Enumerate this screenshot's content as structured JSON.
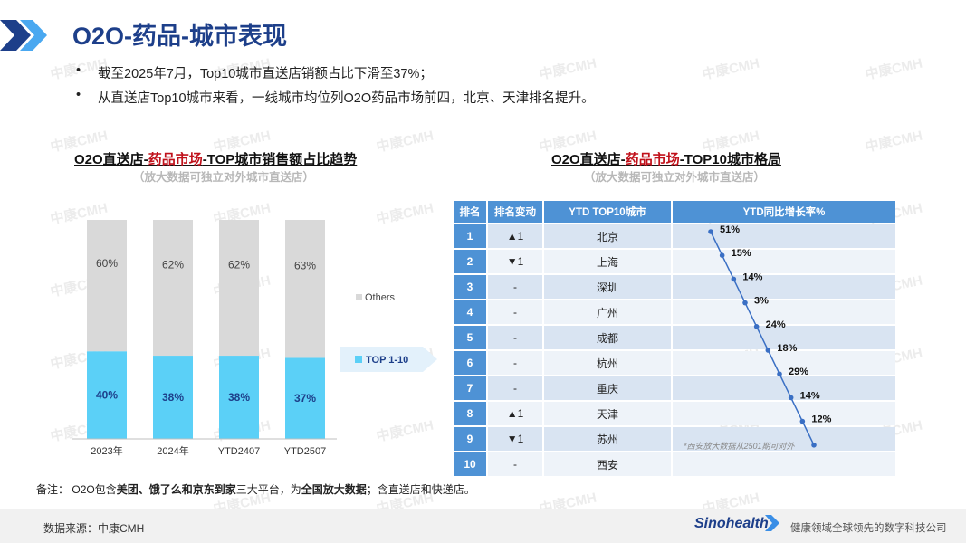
{
  "header": {
    "title": "O2O-药品-城市表现",
    "bullets": [
      "截至2025年7月，Top10城市直送店销额占比下滑至37%；",
      "从直送店Top10城市来看，一线城市均位列O2O药品市场前四，北京、天津排名提升。"
    ],
    "bullet_symbol": "•"
  },
  "left_chart": {
    "title_prefix": "O2O直送店-",
    "title_red": "药品市场",
    "title_suffix": "-TOP城市销售额占比趋势",
    "subtitle": "（放大数据可独立对外城市直送店）",
    "legend_others": "Others",
    "legend_top": "TOP 1-10",
    "colors": {
      "top": "#5bd0f7",
      "others": "#d9d9d9"
    }
  },
  "right_chart": {
    "title_prefix": "O2O直送店-",
    "title_red": "药品市场",
    "title_suffix": "-TOP10城市格局",
    "subtitle": "（放大数据可独立对外城市直送店）",
    "headers": [
      "排名",
      "排名变动",
      "YTD TOP10城市",
      "YTD同比增长率%"
    ],
    "rows": [
      {
        "rank": "1",
        "change": "▲1",
        "dir": "up",
        "city": "北京",
        "growth": "51%"
      },
      {
        "rank": "2",
        "change": "▼1",
        "dir": "down",
        "city": "上海",
        "growth": "15%"
      },
      {
        "rank": "3",
        "change": "-",
        "dir": "none",
        "city": "深圳",
        "growth": "14%"
      },
      {
        "rank": "4",
        "change": "-",
        "dir": "none",
        "city": "广州",
        "growth": "3%"
      },
      {
        "rank": "5",
        "change": "-",
        "dir": "none",
        "city": "成都",
        "growth": "24%"
      },
      {
        "rank": "6",
        "change": "-",
        "dir": "none",
        "city": "杭州",
        "growth": "18%"
      },
      {
        "rank": "7",
        "change": "-",
        "dir": "none",
        "city": "重庆",
        "growth": "29%"
      },
      {
        "rank": "8",
        "change": "▲1",
        "dir": "up",
        "city": "天津",
        "growth": "14%"
      },
      {
        "rank": "9",
        "change": "▼1",
        "dir": "down",
        "city": "苏州",
        "growth": "12%"
      },
      {
        "rank": "10",
        "change": "-",
        "dir": "none",
        "city": "西安",
        "growth": ""
      }
    ],
    "xian_note": "*西安放大数据从2501期可对外",
    "colors": {
      "header": "#4e92d5",
      "up": "#1f9d3c",
      "down": "#c0111b",
      "line": "#3a6fc4"
    }
  },
  "chart_data": [
    {
      "type": "bar",
      "stacked": true,
      "categories": [
        "2023年",
        "2024年",
        "YTD2407",
        "YTD2507"
      ],
      "series": [
        {
          "name": "TOP 1-10",
          "values": [
            40,
            38,
            38,
            37
          ],
          "labels": [
            "40%",
            "38%",
            "38%",
            "37%"
          ]
        },
        {
          "name": "Others",
          "values": [
            60,
            62,
            62,
            63
          ],
          "labels": [
            "60%",
            "62%",
            "62%",
            "63%"
          ]
        }
      ],
      "ylim": [
        0,
        100
      ]
    },
    {
      "type": "line",
      "categories": [
        "北京",
        "上海",
        "深圳",
        "广州",
        "成都",
        "杭州",
        "重庆",
        "天津",
        "苏州",
        "西安"
      ],
      "series": [
        {
          "values": [
            51,
            15,
            14,
            3,
            24,
            18,
            29,
            14,
            12,
            null
          ]
        }
      ]
    }
  ],
  "footer": {
    "note_label": "备注：",
    "note_parts": [
      {
        "t": "O2O包含",
        "b": false
      },
      {
        "t": "美团、饿了么和京东到家",
        "b": true
      },
      {
        "t": "三大平台，为",
        "b": false
      },
      {
        "t": "全国放大数据",
        "b": true
      },
      {
        "t": "；含直送店和快递店。",
        "b": false
      }
    ],
    "source": "数据来源：中康CMH",
    "brand": "Sinohealth",
    "slogan": "健康领域全球领先的数字科技公司"
  },
  "watermark": "中康CMH"
}
